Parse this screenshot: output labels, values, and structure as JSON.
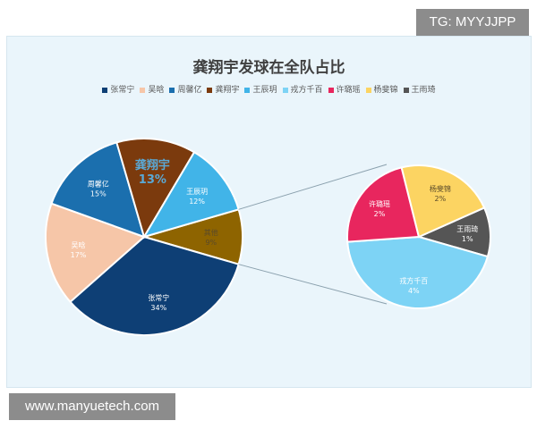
{
  "chart_data": {
    "type": "pie-of-pie",
    "title": "龚翔宇发球在全队占比",
    "legend_position": "top",
    "main_pie": [
      {
        "label": "其他",
        "value": 9,
        "display": "9%",
        "color": "#8e6400"
      },
      {
        "label": "张常宁",
        "value": 34,
        "display": "34%",
        "color": "#0e3f75"
      },
      {
        "label": "吴晗",
        "value": 17,
        "display": "17%",
        "color": "#f6c6a8"
      },
      {
        "label": "周馨亿",
        "value": 15,
        "display": "15%",
        "color": "#1b6fae"
      },
      {
        "label": "龚翔宇",
        "value": 13,
        "display": "13%",
        "color": "#7b3a0d"
      },
      {
        "label": "王辰玥",
        "value": 12,
        "display": "12%",
        "color": "#41b4e8"
      }
    ],
    "secondary_pie": [
      {
        "label": "王雨琦",
        "value": 1,
        "display": "1%",
        "color": "#555555"
      },
      {
        "label": "戎方千百",
        "value": 4,
        "display": "4%",
        "color": "#7dd3f5"
      },
      {
        "label": "许璐瑶",
        "value": 2,
        "display": "2%",
        "color": "#e8265e"
      },
      {
        "label": "杨斐锦",
        "value": 2,
        "display": "2%",
        "color": "#fcd462"
      }
    ],
    "legend": [
      {
        "label": "张常宁",
        "color": "#0e3f75"
      },
      {
        "label": "吴晗",
        "color": "#f6c6a8"
      },
      {
        "label": "周馨亿",
        "color": "#1b6fae"
      },
      {
        "label": "龚翔宇",
        "color": "#7b3a0d"
      },
      {
        "label": "王辰玥",
        "color": "#41b4e8"
      },
      {
        "label": "戎方千百",
        "color": "#7dd3f5"
      },
      {
        "label": "许璐瑶",
        "color": "#e8265e"
      },
      {
        "label": "杨斐锦",
        "color": "#fcd462"
      },
      {
        "label": "王雨琦",
        "color": "#555555"
      }
    ]
  },
  "watermarks": {
    "top_right": "TG: MYYJJPP",
    "bottom_left": "www.manyuetech.com"
  }
}
